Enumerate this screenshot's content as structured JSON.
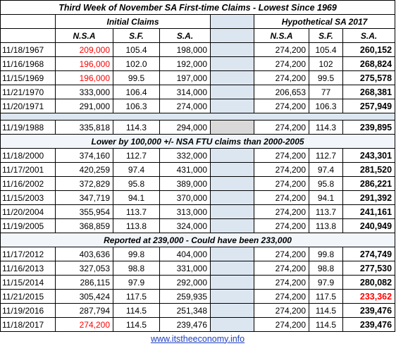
{
  "title": "Third Week of November SA First-time Claims - Lowest Since 1969",
  "header_groups": [
    "Initial Claims",
    "Hypothetical SA 2017"
  ],
  "column_headers": [
    "N.S.A",
    "S.F.",
    "S.A.",
    "N.S.A",
    "S.F.",
    "S.A."
  ],
  "blocks": [
    {
      "rows": [
        [
          "11/18/1967",
          "209,000",
          "105.4",
          "198,000",
          "274,200",
          "105.4",
          "260,152"
        ],
        [
          "11/16/1968",
          "196,000",
          "102.0",
          "192,000",
          "274,200",
          "102",
          "268,824"
        ],
        [
          "11/15/1969",
          "196,000",
          "99.5",
          "197,000",
          "274,200",
          "99.5",
          "275,578"
        ],
        [
          "11/21/1970",
          "333,000",
          "106.4",
          "314,000",
          "206,653",
          "77",
          "268,381"
        ],
        [
          "11/20/1971",
          "291,000",
          "106.3",
          "274,000",
          "274,200",
          "106.3",
          "257,949"
        ]
      ]
    },
    {
      "rows": [
        [
          "11/19/1988",
          "335,818",
          "114.3",
          "294,000",
          "274,200",
          "114.3",
          "239,895"
        ]
      ]
    },
    {
      "note": "Lower by 100,000 +/-  NSA FTU claims than 2000-2005",
      "rows": [
        [
          "11/18/2000",
          "374,160",
          "112.7",
          "332,000",
          "274,200",
          "112.7",
          "243,301"
        ],
        [
          "11/17/2001",
          "420,259",
          "97.4",
          "431,000",
          "274,200",
          "97.4",
          "281,520"
        ],
        [
          "11/16/2002",
          "372,829",
          "95.8",
          "389,000",
          "274,200",
          "95.8",
          "286,221"
        ],
        [
          "11/15/2003",
          "347,719",
          "94.1",
          "370,000",
          "274,200",
          "94.1",
          "291,392"
        ],
        [
          "11/20/2004",
          "355,954",
          "113.7",
          "313,000",
          "274,200",
          "113.7",
          "241,161"
        ],
        [
          "11/19/2005",
          "368,859",
          "113.8",
          "324,000",
          "274,200",
          "113.8",
          "240,949"
        ]
      ]
    },
    {
      "note": "Reported at 239,000  - Could have been 233,000",
      "rows": [
        [
          "11/17/2012",
          "403,636",
          "99.8",
          "404,000",
          "274,200",
          "99.8",
          "274,749"
        ],
        [
          "11/16/2013",
          "327,053",
          "98.8",
          "331,000",
          "274,200",
          "98.8",
          "277,530"
        ],
        [
          "11/15/2014",
          "286,115",
          "97.9",
          "292,000",
          "274,200",
          "97.9",
          "280,082"
        ],
        [
          "11/21/2015",
          "305,424",
          "117.5",
          "259,935",
          "274,200",
          "117.5",
          "233,362"
        ],
        [
          "11/19/2016",
          "287,794",
          "114.5",
          "251,348",
          "274,200",
          "114.5",
          "239,476"
        ],
        [
          "11/18/2017",
          "274,200",
          "114.5",
          "239,476",
          "274,200",
          "114.5",
          "239,476"
        ]
      ]
    }
  ],
  "footer": "www.itstheeconomy.info"
}
